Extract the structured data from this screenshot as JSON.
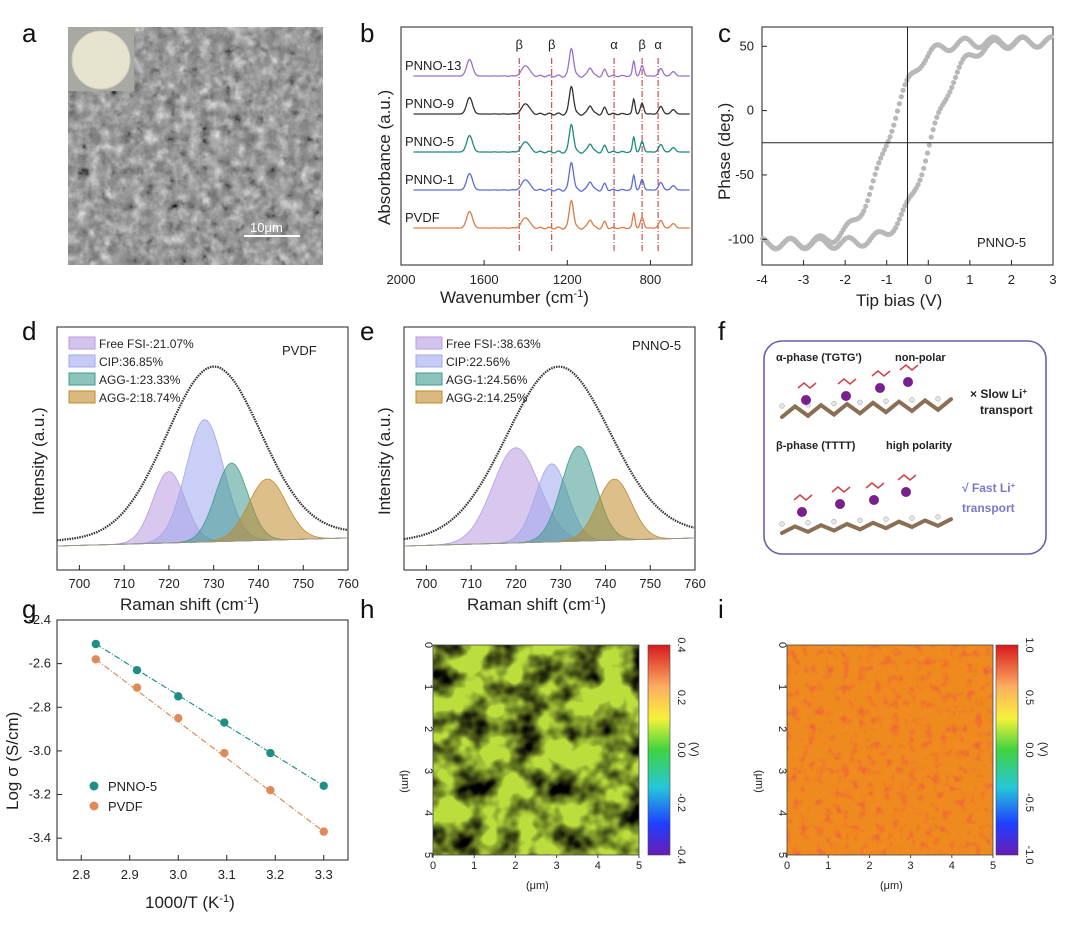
{
  "panel_labels": [
    "a",
    "b",
    "c",
    "d",
    "e",
    "f",
    "g",
    "h",
    "i"
  ],
  "panel_a": {
    "scale_bar": "10μm"
  },
  "colors": {
    "pnno13": "#9b72c9",
    "pnno9": "#333333",
    "pnno5": "#1e8a80",
    "pnno1": "#5a6fd6",
    "pvdf": "#e07b45",
    "free": "#b89be0",
    "cip": "#9fa8ec",
    "agg1": "#3f9b8e",
    "agg2": "#c08a2a",
    "teal": "#1f8f86",
    "orange": "#e08a5a",
    "gray": "#b8b8b8",
    "box": "#6a5fb0"
  },
  "chart_data": [
    {
      "id": "b",
      "type": "line",
      "xlabel": "Wavenumber (cm",
      "xlabel_sup": "-1",
      "xlabel_end": ")",
      "ylabel": "Absorbance (a.u.)",
      "xlim": [
        2000,
        600
      ],
      "xticks": [
        2000,
        1600,
        1200,
        800
      ],
      "series": [
        {
          "name": "PNNO-13",
          "color_key": "pnno13",
          "offset": 4
        },
        {
          "name": "PNNO-9",
          "color_key": "pnno9",
          "offset": 3
        },
        {
          "name": "PNNO-5",
          "color_key": "pnno5",
          "offset": 2
        },
        {
          "name": "PNNO-1",
          "color_key": "pnno1",
          "offset": 1
        },
        {
          "name": "PVDF",
          "color_key": "pvdf",
          "offset": 0
        }
      ],
      "peaks": [
        [
          1670,
          0.55,
          14
        ],
        [
          1400,
          0.35,
          18
        ],
        [
          1180,
          0.95,
          10
        ],
        [
          1090,
          0.3,
          10
        ],
        [
          1020,
          0.2,
          8
        ],
        [
          880,
          0.5,
          6
        ],
        [
          840,
          0.35,
          8
        ],
        [
          750,
          0.25,
          10
        ],
        [
          690,
          0.15,
          10
        ]
      ],
      "markers": [
        {
          "x": 1431,
          "label": "β"
        },
        {
          "x": 1275,
          "label": "β"
        },
        {
          "x": 975,
          "label": "α"
        },
        {
          "x": 840,
          "label": "β"
        },
        {
          "x": 763,
          "label": "α"
        }
      ]
    },
    {
      "id": "c",
      "type": "scatter",
      "xlabel": "Tip bias (V)",
      "ylabel": "Phase (deg.)",
      "xlim": [
        -4,
        3
      ],
      "ylim": [
        -120,
        65
      ],
      "xticks": [
        -4,
        -3,
        -2,
        -1,
        0,
        1,
        2,
        3
      ],
      "yticks": [
        -100,
        -50,
        0,
        50
      ],
      "crosshair": {
        "x": -0.5,
        "y": -25
      },
      "annotation": "PNNO-5",
      "loop": {
        "ymin": -105,
        "ymax": 55,
        "forward_center": 0.05,
        "backward_center": -1.0,
        "width": 0.75
      }
    },
    {
      "id": "d",
      "type": "area",
      "xlabel": "Raman shift (cm",
      "xlabel_sup": "-1",
      "xlabel_end": ")",
      "ylabel": "Intensity (a.u.)",
      "xlim": [
        695,
        760
      ],
      "xticks": [
        700,
        710,
        720,
        730,
        740,
        750,
        760
      ],
      "annotation": "PVDF",
      "legend": [
        "Free FSI-:21.07%",
        "CIP:36.85%",
        "AGG-1:23.33%",
        "AGG-2:18.74%"
      ],
      "components": [
        {
          "name": "Free FSI-",
          "center": 720,
          "height": 0.42,
          "sigma": 3.6,
          "color_key": "free"
        },
        {
          "name": "CIP",
          "center": 728,
          "height": 0.72,
          "sigma": 4.2,
          "color_key": "cip"
        },
        {
          "name": "AGG-1",
          "center": 734,
          "height": 0.46,
          "sigma": 3.6,
          "color_key": "agg1"
        },
        {
          "name": "AGG-2",
          "center": 742,
          "height": 0.36,
          "sigma": 4.2,
          "color_key": "agg2"
        }
      ],
      "envelope": {
        "center": 730,
        "height": 1.0,
        "sigma": 10.5
      }
    },
    {
      "id": "e",
      "type": "area",
      "xlabel": "Raman shift (cm",
      "xlabel_sup": "-1",
      "xlabel_end": ")",
      "ylabel": "Intensity (a.u.)",
      "xlim": [
        695,
        760
      ],
      "xticks": [
        700,
        710,
        720,
        730,
        740,
        750,
        760
      ],
      "annotation": "PNNO-5",
      "legend": [
        "Free FSI-:38.63%",
        "CIP:22.56%",
        "AGG-1:24.56%",
        "AGG-2:14.25%"
      ],
      "components": [
        {
          "name": "Free FSI-",
          "center": 720,
          "height": 0.56,
          "sigma": 5.2,
          "color_key": "free"
        },
        {
          "name": "CIP",
          "center": 728,
          "height": 0.46,
          "sigma": 3.6,
          "color_key": "cip"
        },
        {
          "name": "AGG-1",
          "center": 734,
          "height": 0.56,
          "sigma": 3.8,
          "color_key": "agg1"
        },
        {
          "name": "AGG-2",
          "center": 742,
          "height": 0.36,
          "sigma": 3.8,
          "color_key": "agg2"
        }
      ],
      "envelope": {
        "center": 729.5,
        "height": 1.0,
        "sigma": 11.5
      }
    },
    {
      "id": "g",
      "type": "scatter",
      "xlabel": "1000/T (K",
      "xlabel_sup": "-1",
      "xlabel_end": ")",
      "ylabel": "Log σ (S/cm)",
      "xlim": [
        2.75,
        3.35
      ],
      "ylim": [
        -3.5,
        -2.4
      ],
      "xticks": [
        2.8,
        2.9,
        3.0,
        3.1,
        3.2,
        3.3
      ],
      "yticks": [
        -2.4,
        -2.6,
        -2.8,
        -3.0,
        -3.2,
        -3.4
      ],
      "x": [
        2.83,
        2.915,
        3.0,
        3.095,
        3.19,
        3.3
      ],
      "series": [
        {
          "name": "PNNO-5",
          "color_key": "teal",
          "values": [
            -2.51,
            -2.63,
            -2.75,
            -2.87,
            -3.01,
            -3.16
          ]
        },
        {
          "name": "PVDF",
          "color_key": "orange",
          "values": [
            -2.58,
            -2.71,
            -2.85,
            -3.01,
            -3.18,
            -3.37
          ]
        }
      ]
    },
    {
      "id": "h",
      "type": "heatmap",
      "xlabel": "(μm)",
      "ylabel": "(μm)",
      "colorbar_label": "(V)",
      "xlim": [
        0,
        5
      ],
      "ylim": [
        0,
        5
      ],
      "ticks": [
        0,
        1,
        2,
        3,
        4,
        5
      ],
      "cbar_range": [
        -0.4,
        0.4
      ],
      "cbar_ticks": [
        "0.4",
        "0.2",
        "0.0",
        "-0.2",
        "-0.4"
      ]
    },
    {
      "id": "i",
      "type": "heatmap",
      "xlabel": "(μm)",
      "ylabel": "(μm)",
      "colorbar_label": "(V)",
      "xlim": [
        0,
        5
      ],
      "ylim": [
        0,
        5
      ],
      "ticks": [
        0,
        1,
        2,
        3,
        4,
        5
      ],
      "cbar_range": [
        -1.0,
        1.0
      ],
      "cbar_ticks": [
        "1.0",
        "0.5",
        "0.0",
        "-0.5",
        "-1.0"
      ]
    }
  ],
  "panel_f": {
    "alpha_title": "α-phase (TGTG')",
    "alpha_desc": "non-polar",
    "slow_line1": "× Slow Li",
    "slow_line2": "transport",
    "beta_title": "β-phase (TTTT)",
    "beta_desc": "high polarity",
    "fast_line1": "√  Fast Li",
    "fast_line2": "transport",
    "sup_plus": "+"
  }
}
